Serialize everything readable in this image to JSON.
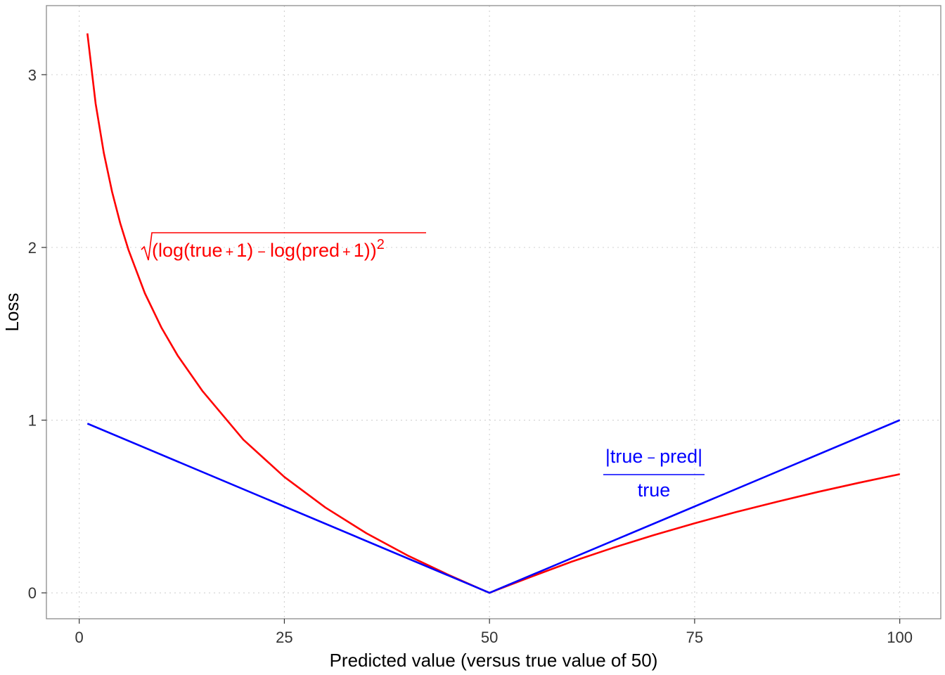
{
  "chart_data": {
    "type": "line",
    "xlabel": "Predicted value (versus true value of 50)",
    "ylabel": "Loss",
    "xlim": [
      -4,
      105
    ],
    "ylim": [
      -0.15,
      3.4
    ],
    "x_ticks": [
      0,
      25,
      50,
      75,
      100
    ],
    "x_tick_labels": [
      "0",
      "25",
      "50",
      "75",
      "100"
    ],
    "y_ticks": [
      0,
      1,
      2,
      3
    ],
    "y_tick_labels": [
      "0",
      "1",
      "2",
      "3"
    ],
    "grid": true,
    "legend": "none",
    "true_value": 50,
    "series": [
      {
        "color": "#ff0000",
        "x": [
          1,
          2,
          3,
          4,
          5,
          6,
          8,
          10,
          12,
          15,
          20,
          25,
          30,
          35,
          40,
          45,
          49,
          50,
          51,
          55,
          60,
          65,
          70,
          75,
          80,
          85,
          90,
          95,
          100
        ],
        "y": [
          3.239,
          2.833,
          2.546,
          2.322,
          2.14,
          1.986,
          1.735,
          1.537,
          1.374,
          1.17,
          0.887,
          0.671,
          0.494,
          0.345,
          0.217,
          0.104,
          0.02,
          0.0,
          0.019,
          0.092,
          0.18,
          0.26,
          0.334,
          0.403,
          0.467,
          0.527,
          0.584,
          0.637,
          0.687
        ]
      },
      {
        "color": "#0000ff",
        "x": [
          1,
          49,
          50,
          51,
          100
        ],
        "y": [
          0.98,
          0.02,
          0.0,
          0.02,
          1.0
        ]
      }
    ],
    "annotations": [
      {
        "color": "#ff0000",
        "radicand_parts": [
          "(",
          "log",
          "(",
          "true",
          "+",
          "1",
          ")",
          "−",
          "log",
          "(",
          "pred",
          "+",
          "1",
          ")",
          ")"
        ],
        "exponent": "2"
      },
      {
        "color": "#0000ff",
        "numerator_parts": [
          "|",
          "true",
          "−",
          "pred",
          "|"
        ],
        "denominator": "true"
      }
    ]
  }
}
